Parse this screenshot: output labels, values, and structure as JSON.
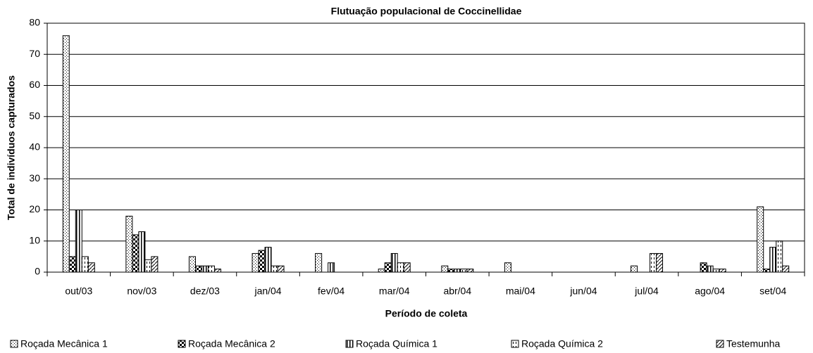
{
  "chart_data": {
    "type": "bar",
    "title": "Flutuação populacional de Coccinellidae",
    "x_label": "Período de coleta",
    "y_label": "Total de indivíduos capturados",
    "categories": [
      "out/03",
      "nov/03",
      "dez/03",
      "jan/04",
      "fev/04",
      "mar/04",
      "abr/04",
      "mai/04",
      "jun/04",
      "jul/04",
      "ago/04",
      "set/04"
    ],
    "series": [
      {
        "name": "Roçada Mecânica 1",
        "color": "#000000",
        "pattern": "dots",
        "values": [
          76,
          18,
          5,
          6,
          6,
          1,
          2,
          3,
          0,
          2,
          0,
          21
        ]
      },
      {
        "name": "Roçada Mecânica 2",
        "color": "#000000",
        "pattern": "checker",
        "values": [
          5,
          12,
          2,
          7,
          0,
          3,
          1,
          0,
          0,
          0,
          3,
          1
        ]
      },
      {
        "name": "Roçada Química 1",
        "color": "#000000",
        "pattern": "vertical-stripes",
        "values": [
          20,
          13,
          2,
          8,
          3,
          6,
          1,
          0,
          0,
          0,
          2,
          8
        ]
      },
      {
        "name": "Roçada Química 2",
        "color": "#000000",
        "pattern": "dashed-vertical",
        "values": [
          5,
          4,
          2,
          2,
          0,
          3,
          1,
          0,
          0,
          6,
          1,
          10
        ]
      },
      {
        "name": "Testemunha",
        "color": "#000000",
        "pattern": "diagonal",
        "values": [
          3,
          5,
          1,
          2,
          0,
          3,
          1,
          0,
          0,
          6,
          1,
          2
        ]
      }
    ],
    "ylim": [
      0,
      80
    ],
    "yticks": [
      0,
      10,
      20,
      30,
      40,
      50,
      60,
      70,
      80
    ],
    "grid": true,
    "legend": "bottom"
  }
}
